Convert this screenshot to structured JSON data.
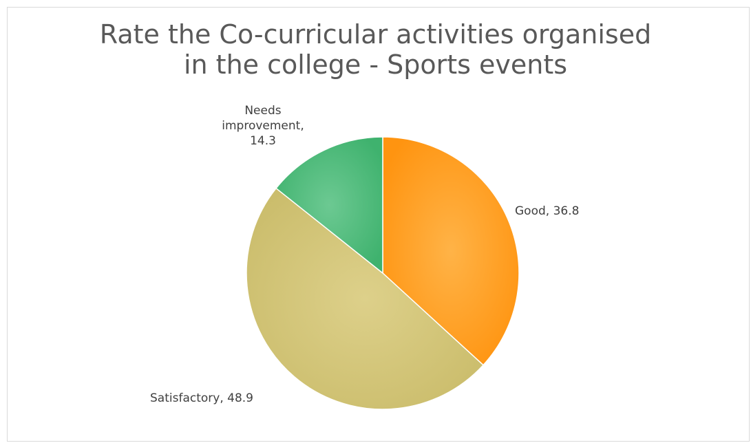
{
  "chart_data": {
    "type": "pie",
    "title": "Rate the Co-curricular activities organised in the college - Sports events",
    "title_lines": [
      "Rate the Co-curricular activities organised",
      "in the college - Sports events"
    ],
    "slices": [
      {
        "label": "Good",
        "value": 36.8,
        "color": "#ff9a1f",
        "label_lines": [
          "Good, 36.8"
        ]
      },
      {
        "label": "Satisfactory",
        "value": 48.9,
        "color": "#d4c677",
        "label_lines": [
          "Satisfactory, 48.9"
        ]
      },
      {
        "label": "Needs improvement",
        "value": 14.3,
        "color": "#4cbb7a",
        "label_lines": [
          "Needs",
          "improvement,",
          "14.3"
        ]
      }
    ],
    "start_angle_deg": 0,
    "direction": "clockwise",
    "legend": "none",
    "data_labels": "outside"
  }
}
